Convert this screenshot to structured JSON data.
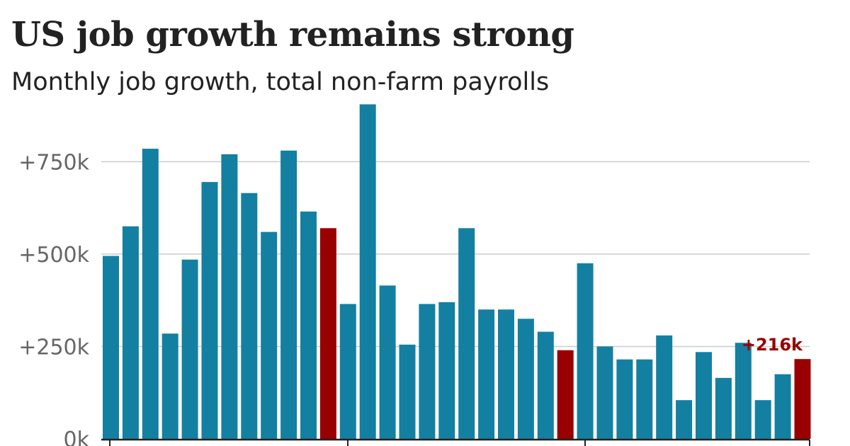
{
  "title": "US job growth remains strong",
  "subtitle": "Monthly job growth, total non-farm payrolls",
  "colors": {
    "bar": "#1380a1",
    "highlight": "#990000",
    "grid": "#cccccc",
    "axis": "#222222",
    "tick_text": "#666666"
  },
  "chart_data": {
    "type": "bar",
    "title": "US job growth remains strong",
    "subtitle": "Monthly job growth, total non-farm payrolls",
    "xlabel": "",
    "ylabel": "",
    "ylim": [
      0,
      900000
    ],
    "y_ticks": [
      {
        "value": 0,
        "label": "0k"
      },
      {
        "value": 250000,
        "label": "+250k"
      },
      {
        "value": 500000,
        "label": "+500k"
      },
      {
        "value": 750000,
        "label": "+750k"
      }
    ],
    "grid": true,
    "values": [
      495000,
      575000,
      785000,
      285000,
      485000,
      695000,
      770000,
      665000,
      560000,
      780000,
      615000,
      570000,
      365000,
      905000,
      415000,
      255000,
      365000,
      370000,
      570000,
      350000,
      350000,
      325000,
      290000,
      240000,
      475000,
      250000,
      215000,
      215000,
      280000,
      105000,
      235000,
      165000,
      260000,
      105000,
      175000,
      216000
    ],
    "highlight_indices": [
      11,
      23,
      35
    ],
    "annotations": [
      {
        "index": 35,
        "text": "+216k"
      }
    ]
  }
}
